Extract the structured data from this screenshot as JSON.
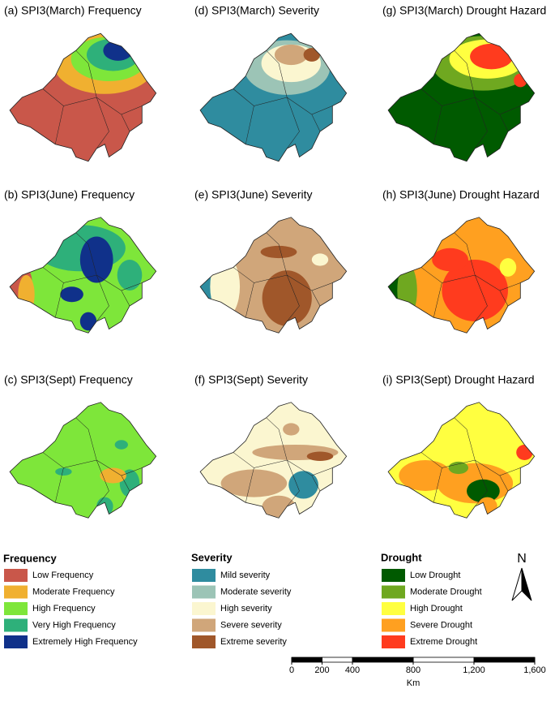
{
  "panels": [
    {
      "title": "(a) SPI3(March) Frequency"
    },
    {
      "title": "(b) SPI3(June) Frequency"
    },
    {
      "title": "(c) SPI3(Sept) Frequency"
    },
    {
      "title": "(d) SPI3(March) Severity"
    },
    {
      "title": "(e) SPI3(June) Severity"
    },
    {
      "title": "(f) SPI3(Sept) Severity"
    },
    {
      "title": "(g) SPI3(March) Drought Hazard"
    },
    {
      "title": "(h) SPI3(June) Drought Hazard"
    },
    {
      "title": "(i) SPI3(Sept) Drought Hazard"
    }
  ],
  "legends": [
    {
      "title": "Frequency",
      "items": [
        {
          "label": "Low Frequency",
          "color": "#c9574a"
        },
        {
          "label": "Moderate Frequency",
          "color": "#f0b030"
        },
        {
          "label": "High Frequency",
          "color": "#7ee63a"
        },
        {
          "label": "Very High Frequency",
          "color": "#2eb07a"
        },
        {
          "label": "Extremely High Frequency",
          "color": "#10318a"
        }
      ]
    },
    {
      "title": "Severity",
      "items": [
        {
          "label": "Mild severity",
          "color": "#2f8c9f"
        },
        {
          "label": "Moderate severity",
          "color": "#9cc4b6"
        },
        {
          "label": "High severity",
          "color": "#fbf6d0"
        },
        {
          "label": "Severe severity",
          "color": "#d0a67a"
        },
        {
          "label": "Extreme severity",
          "color": "#a0572a"
        }
      ]
    },
    {
      "title": "Drought",
      "items": [
        {
          "label": "Low Drought",
          "color": "#005a00"
        },
        {
          "label": "Moderate Drought",
          "color": "#6fa820"
        },
        {
          "label": "High Drought",
          "color": "#ffff40"
        },
        {
          "label": "Severe Drought",
          "color": "#ffa020"
        },
        {
          "label": "Extreme Drought",
          "color": "#ff3b1e"
        }
      ]
    }
  ],
  "north_arrow": "N",
  "scale_bar": {
    "ticks": [
      0,
      200,
      400,
      800,
      {
        "value": 1200,
        "label": "1,200"
      },
      {
        "value": 1600,
        "label": "1,600"
      }
    ],
    "unit": "Km"
  }
}
